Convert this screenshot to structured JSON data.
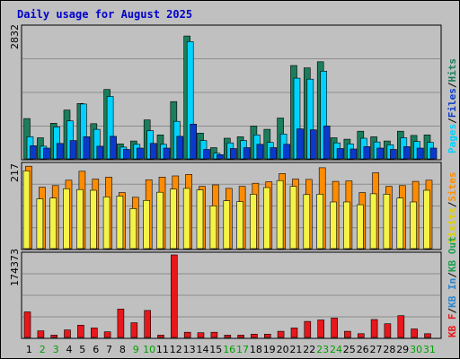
{
  "chart_data": [
    {
      "type": "bar",
      "title": "Daily usage for August 2025",
      "categories": [
        "1",
        "2",
        "3",
        "4",
        "5",
        "6",
        "7",
        "8",
        "9",
        "10",
        "11",
        "12",
        "13",
        "14",
        "15",
        "16",
        "17",
        "18",
        "19",
        "20",
        "21",
        "22",
        "23",
        "24",
        "25",
        "26",
        "27",
        "28",
        "29",
        "30",
        "31"
      ],
      "weekend_days": [
        "2",
        "3",
        "9",
        "10",
        "16",
        "17",
        "23",
        "24",
        "30",
        "31"
      ],
      "ymax_label": "2832",
      "ylim": [
        0,
        2832
      ],
      "legend": [
        "Pages",
        "Files",
        "Hits"
      ],
      "series": [
        {
          "name": "Hits",
          "color": "#1b7d5c",
          "values": [
            860,
            450,
            760,
            1040,
            1180,
            750,
            1480,
            320,
            380,
            830,
            510,
            1220,
            2620,
            550,
            240,
            440,
            470,
            700,
            630,
            870,
            1990,
            1940,
            2070,
            450,
            420,
            590,
            470,
            380,
            590,
            500,
            510
          ]
        },
        {
          "name": "Files",
          "color": "#00d2ff",
          "values": [
            470,
            270,
            680,
            810,
            1170,
            630,
            1330,
            250,
            310,
            600,
            310,
            800,
            2500,
            390,
            120,
            340,
            390,
            510,
            350,
            530,
            1720,
            1700,
            1870,
            340,
            320,
            440,
            360,
            300,
            450,
            370,
            350
          ]
        },
        {
          "name": "Pages",
          "color": "#0a3acc",
          "values": [
            280,
            230,
            330,
            390,
            470,
            270,
            480,
            200,
            230,
            330,
            230,
            480,
            740,
            200,
            90,
            220,
            240,
            310,
            240,
            310,
            640,
            620,
            700,
            220,
            210,
            260,
            230,
            200,
            260,
            230,
            230
          ]
        }
      ]
    },
    {
      "type": "bar",
      "categories": [
        "1",
        "2",
        "3",
        "4",
        "5",
        "6",
        "7",
        "8",
        "9",
        "10",
        "11",
        "12",
        "13",
        "14",
        "15",
        "16",
        "17",
        "18",
        "19",
        "20",
        "21",
        "22",
        "23",
        "24",
        "25",
        "26",
        "27",
        "28",
        "29",
        "30",
        "31"
      ],
      "ymax_label": "217",
      "ylim": [
        0,
        217
      ],
      "legend": [
        "Visits",
        "Sites"
      ],
      "series": [
        {
          "name": "Sites",
          "color": "#ff8c00",
          "values": [
            212,
            158,
            162,
            176,
            199,
            179,
            184,
            144,
            132,
            177,
            184,
            187,
            191,
            160,
            164,
            155,
            160,
            168,
            172,
            193,
            179,
            178,
            208,
            173,
            174,
            144,
            195,
            160,
            162,
            173,
            176
          ]
        },
        {
          "name": "Visits",
          "color": "#f4f448",
          "values": [
            200,
            128,
            130,
            154,
            152,
            150,
            133,
            135,
            103,
            124,
            145,
            153,
            155,
            151,
            110,
            123,
            121,
            140,
            157,
            175,
            160,
            139,
            140,
            120,
            120,
            113,
            141,
            140,
            130,
            120,
            150
          ]
        }
      ]
    },
    {
      "type": "bar",
      "categories": [
        "1",
        "2",
        "3",
        "4",
        "5",
        "6",
        "7",
        "8",
        "9",
        "10",
        "11",
        "12",
        "13",
        "14",
        "15",
        "16",
        "17",
        "18",
        "19",
        "20",
        "21",
        "22",
        "23",
        "24",
        "25",
        "26",
        "27",
        "28",
        "29",
        "30",
        "31"
      ],
      "ymax_label": "174373",
      "ylim": [
        0,
        174373
      ],
      "legend": [
        "KB F",
        "KB In",
        "KB Out"
      ],
      "series": [
        {
          "name": "KB F",
          "color": "#e8171b",
          "values": [
            54000,
            14000,
            5000,
            16000,
            26000,
            20000,
            12000,
            60000,
            31000,
            57000,
            5000,
            174373,
            11000,
            10000,
            11000,
            5000,
            5000,
            7000,
            7000,
            13000,
            20000,
            34000,
            37000,
            41000,
            13000,
            8000,
            38000,
            29000,
            46000,
            18000,
            8000
          ]
        }
      ]
    }
  ]
}
